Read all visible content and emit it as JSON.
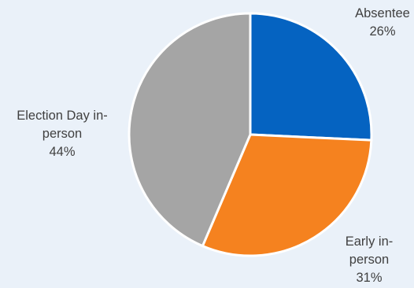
{
  "chart_data": {
    "type": "pie",
    "slices": [
      {
        "label": [
          "Absentee"
        ],
        "value": 26,
        "value_text": "26%",
        "color": "#0563c1"
      },
      {
        "label": [
          "Early in-",
          "person"
        ],
        "value": 31,
        "value_text": "31%",
        "color": "#f5821f"
      },
      {
        "label": [
          "Election Day in-",
          "person"
        ],
        "value": 44,
        "value_text": "44%",
        "color": "#a5a5a5"
      }
    ],
    "start_angle_deg": 0,
    "direction": "clockwise",
    "slice_border_color": "#ffffff",
    "background_color": "#eaf1f9",
    "legend": "none"
  }
}
